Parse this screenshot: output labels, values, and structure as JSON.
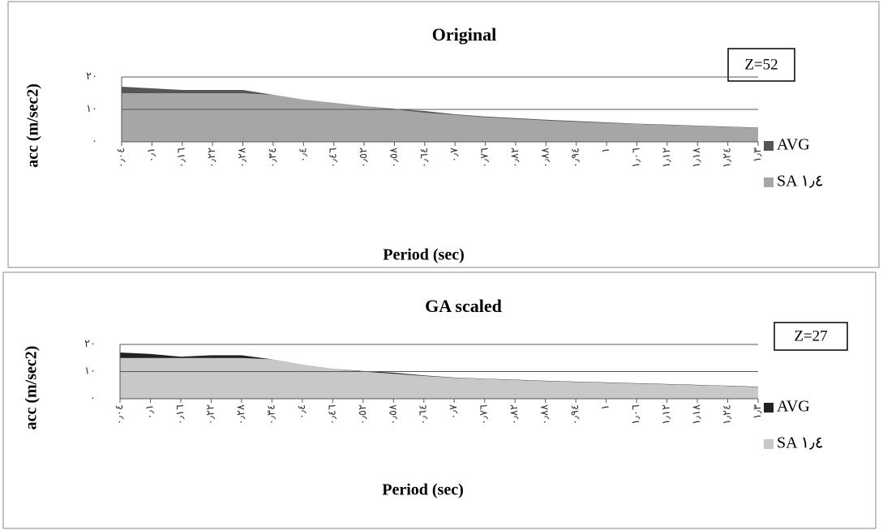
{
  "chart_data": [
    {
      "type": "area",
      "title": "Original",
      "annotation": "Z=52",
      "x_label": "Period (sec)",
      "y_label": "acc (m/sec2)",
      "categories": [
        "٠٫٠٤",
        "٠٫١",
        "٠٫١٦",
        "٠٫٢٢",
        "٠٫٢٨",
        "٠٫٣٤",
        "٠٫٤",
        "٠٫٤٦",
        "٠٫٥٢",
        "٠٫٥٨",
        "٠٫٦٤",
        "٠٫٧",
        "٠٫٧٦",
        "٠٫٨٢",
        "٠٫٨٨",
        "٠٫٩٤",
        "١",
        "١٫٠٦",
        "١٫١٢",
        "١٫١٨",
        "١٫٢٤",
        "١٫٣"
      ],
      "series": [
        {
          "name": "AVG",
          "color": "#555555",
          "values": [
            17,
            16.5,
            16,
            16,
            16,
            14.5,
            13,
            12,
            11,
            10.2,
            9.5,
            8.5,
            7.8,
            7.3,
            6.8,
            6.4,
            6,
            5.6,
            5.3,
            5,
            4.7,
            4.4
          ]
        },
        {
          "name": "SA ١٫٤",
          "color": "#a6a6a6",
          "values": [
            15,
            15,
            15,
            15,
            15,
            14.5,
            13,
            12,
            11,
            10,
            9,
            8.3,
            7.6,
            7.1,
            6.6,
            6.2,
            5.8,
            5.5,
            5.2,
            4.9,
            4.6,
            4.3
          ]
        }
      ],
      "ylim": [
        0,
        20
      ],
      "yticks": [
        {
          "value": 0,
          "label": "٠"
        },
        {
          "value": 10,
          "label": "١٠"
        },
        {
          "value": 20,
          "label": "٢٠"
        }
      ],
      "grid": true
    },
    {
      "type": "area",
      "title": "GA scaled",
      "annotation": "Z=27",
      "x_label": "Period (sec)",
      "y_label": "acc (m/sec2)",
      "categories": [
        "٠٫٠٤",
        "٠٫١",
        "٠٫١٦",
        "٠٫٢٢",
        "٠٫٢٨",
        "٠٫٣٤",
        "٠٫٤",
        "٠٫٤٦",
        "٠٫٥٢",
        "٠٫٥٨",
        "٠٫٦٤",
        "٠٫٧",
        "٠٫٧٦",
        "٠٫٨٢",
        "٠٫٨٨",
        "٠٫٩٤",
        "١",
        "١٫٠٦",
        "١٫١٢",
        "١٫١٨",
        "١٫٢٤",
        "١٫٣"
      ],
      "series": [
        {
          "name": "AVG",
          "color": "#222222",
          "values": [
            17,
            16.5,
            15.5,
            16,
            16,
            14.5,
            12.5,
            11,
            10.2,
            9.6,
            8.6,
            7.8,
            7.4,
            7,
            6.6,
            6.3,
            6,
            5.7,
            5.4,
            5.1,
            4.8,
            4.4
          ]
        },
        {
          "name": "SA ١٫٤",
          "color": "#c8c8c8",
          "values": [
            15,
            15,
            15,
            15,
            15,
            14.5,
            12.5,
            11,
            10,
            9.2,
            8.4,
            7.7,
            7.3,
            6.9,
            6.5,
            6.2,
            5.9,
            5.6,
            5.3,
            5,
            4.7,
            4.3
          ]
        }
      ],
      "ylim": [
        0,
        20
      ],
      "yticks": [
        {
          "value": 0,
          "label": "٠"
        },
        {
          "value": 10,
          "label": "١٠"
        },
        {
          "value": 20,
          "label": "٢٠"
        }
      ],
      "grid": true
    }
  ]
}
